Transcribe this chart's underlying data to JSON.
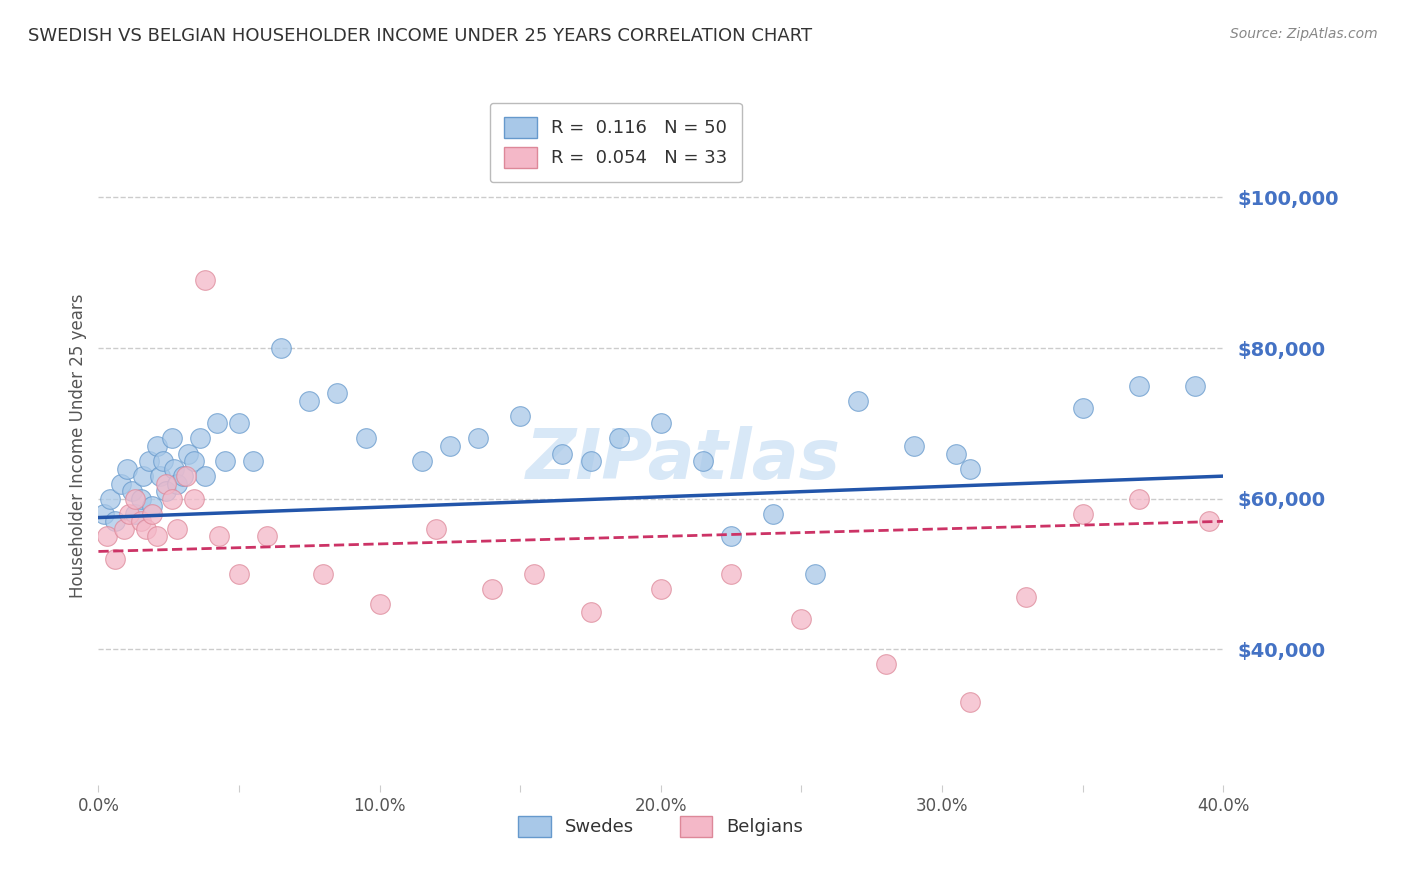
{
  "title": "SWEDISH VS BELGIAN HOUSEHOLDER INCOME UNDER 25 YEARS CORRELATION CHART",
  "source": "Source: ZipAtlas.com",
  "ylabel_left": "Householder Income Under 25 years",
  "xlim": [
    0.0,
    0.4
  ],
  "ylim": [
    22000,
    112000
  ],
  "yticks": [
    40000,
    60000,
    80000,
    100000
  ],
  "ytick_labels": [
    "$40,000",
    "$60,000",
    "$80,000",
    "$100,000"
  ],
  "xticks": [
    0.0,
    0.05,
    0.1,
    0.15,
    0.2,
    0.25,
    0.3,
    0.35,
    0.4
  ],
  "xtick_labels": [
    "0.0%",
    "",
    "10.0%",
    "",
    "20.0%",
    "",
    "30.0%",
    "",
    "40.0%"
  ],
  "swedes_color": "#a8c8e8",
  "belgians_color": "#f4b8c8",
  "swedes_edge_color": "#6699cc",
  "belgians_edge_color": "#dd8899",
  "trend_swedes_color": "#2255aa",
  "trend_belgians_color": "#cc3366",
  "background_color": "#ffffff",
  "grid_color": "#cccccc",
  "watermark": "ZIPatlas",
  "legend_R_swedes": "0.116",
  "legend_N_swedes": "50",
  "legend_R_belgians": "0.054",
  "legend_N_belgians": "33",
  "swedes_x": [
    0.002,
    0.004,
    0.006,
    0.008,
    0.01,
    0.012,
    0.013,
    0.015,
    0.016,
    0.018,
    0.019,
    0.021,
    0.022,
    0.023,
    0.024,
    0.026,
    0.027,
    0.028,
    0.03,
    0.032,
    0.034,
    0.036,
    0.038,
    0.042,
    0.045,
    0.05,
    0.055,
    0.065,
    0.075,
    0.085,
    0.095,
    0.115,
    0.125,
    0.135,
    0.15,
    0.165,
    0.175,
    0.185,
    0.2,
    0.215,
    0.225,
    0.24,
    0.255,
    0.27,
    0.29,
    0.305,
    0.31,
    0.35,
    0.37,
    0.39
  ],
  "swedes_y": [
    58000,
    60000,
    57000,
    62000,
    64000,
    61000,
    58000,
    60000,
    63000,
    65000,
    59000,
    67000,
    63000,
    65000,
    61000,
    68000,
    64000,
    62000,
    63000,
    66000,
    65000,
    68000,
    63000,
    70000,
    65000,
    70000,
    65000,
    80000,
    73000,
    74000,
    68000,
    65000,
    67000,
    68000,
    71000,
    66000,
    65000,
    68000,
    70000,
    65000,
    55000,
    58000,
    50000,
    73000,
    67000,
    66000,
    64000,
    72000,
    75000,
    75000
  ],
  "belgians_x": [
    0.003,
    0.006,
    0.009,
    0.011,
    0.013,
    0.015,
    0.017,
    0.019,
    0.021,
    0.024,
    0.026,
    0.028,
    0.031,
    0.034,
    0.038,
    0.043,
    0.05,
    0.06,
    0.08,
    0.1,
    0.12,
    0.14,
    0.155,
    0.175,
    0.2,
    0.225,
    0.25,
    0.28,
    0.31,
    0.33,
    0.35,
    0.37,
    0.395
  ],
  "belgians_y": [
    55000,
    52000,
    56000,
    58000,
    60000,
    57000,
    56000,
    58000,
    55000,
    62000,
    60000,
    56000,
    63000,
    60000,
    89000,
    55000,
    50000,
    55000,
    50000,
    46000,
    56000,
    48000,
    50000,
    45000,
    48000,
    50000,
    44000,
    38000,
    33000,
    47000,
    58000,
    60000,
    57000
  ],
  "title_color": "#333333",
  "source_color": "#888888",
  "axis_label_color": "#555555",
  "ytick_color": "#4472c4",
  "xtick_color": "#555555"
}
